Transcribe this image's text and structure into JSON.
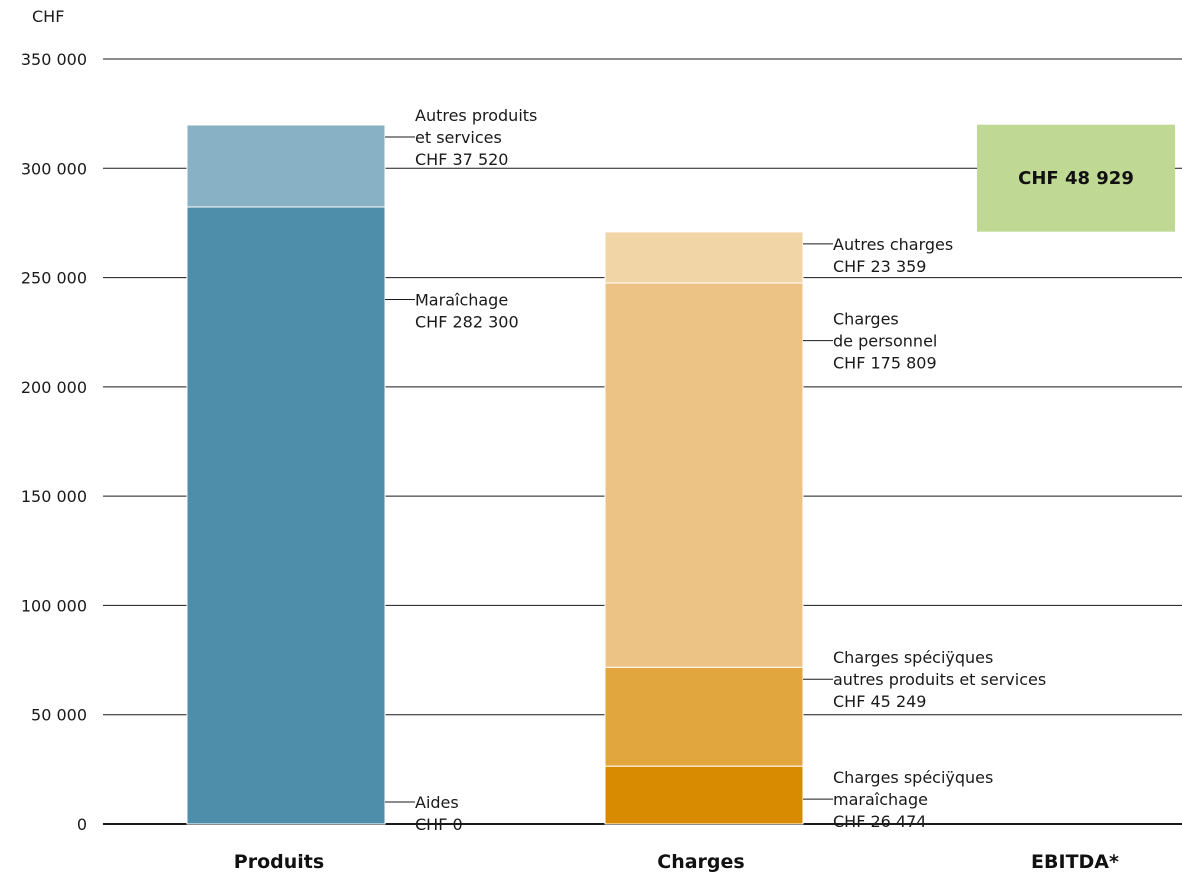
{
  "chart_data": {
    "type": "bar",
    "stacked": true,
    "y_unit": "CHF",
    "ylim": [
      0,
      350000
    ],
    "yticks": [
      0,
      50000,
      100000,
      150000,
      200000,
      250000,
      300000,
      350000
    ],
    "ytick_labels": [
      "0",
      "50 000",
      "100 000",
      "150 000",
      "200 000",
      "250 000",
      "300 000",
      "350 000"
    ],
    "grid": true,
    "categories": [
      "Produits",
      "Charges",
      "EBITDA*"
    ],
    "stacks": [
      {
        "category": "Produits",
        "segments": [
          {
            "label": [
              "Aides",
              "CHF 0"
            ],
            "value": 0,
            "color": "#4e8eab"
          },
          {
            "label": [
              "Maraîchage",
              "CHF 282 300"
            ],
            "value": 282300,
            "color": "#4e8eab"
          },
          {
            "label": [
              "Autres produits",
              "et services",
              "CHF 37 520"
            ],
            "value": 37520,
            "color": "#89b1c6"
          }
        ]
      },
      {
        "category": "Charges",
        "segments": [
          {
            "label": [
              "Charges spéciÿques",
              "maraîchage",
              "CHF 26 474"
            ],
            "value": 26474,
            "color": "#d98b00"
          },
          {
            "label": [
              "Charges spéciÿques",
              "autres produits et services",
              "CHF 45 249"
            ],
            "value": 45249,
            "color": "#e2a63f"
          },
          {
            "label": [
              "Charges",
              "de personnel",
              "CHF 175 809"
            ],
            "value": 175809,
            "color": "#ecc385"
          },
          {
            "label": [
              "Autres charges",
              "CHF 23 359"
            ],
            "value": 23359,
            "color": "#f2d5a7"
          }
        ]
      }
    ],
    "ebitda": {
      "category": "EBITDA*",
      "label": "CHF 48 929",
      "value": 48929,
      "base": 271000,
      "color": "#bfd894"
    }
  }
}
